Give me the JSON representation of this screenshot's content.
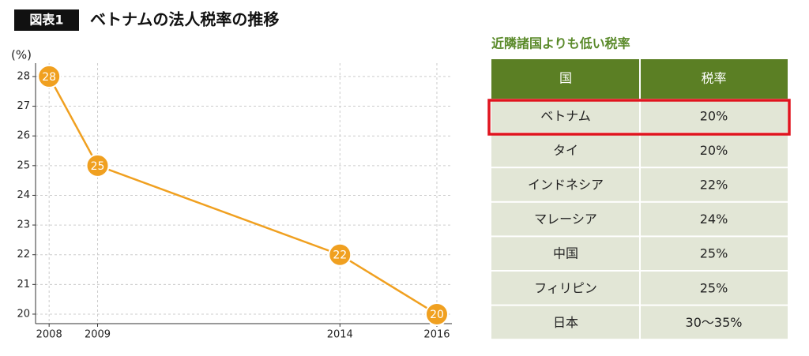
{
  "header": {
    "badge": "図表1",
    "title": "ベトナムの法人税率の推移"
  },
  "chart_data": {
    "type": "line",
    "y_label": "(%)",
    "x": [
      2008,
      2009,
      2014,
      2016
    ],
    "values": [
      28,
      25,
      22,
      20
    ],
    "color": "#f0a020",
    "xlim": [
      2007.72,
      2016.31
    ],
    "xticks": [
      2008,
      2009,
      2014,
      2016
    ],
    "ylim": [
      19.68,
      28.45
    ],
    "yticks": [
      20,
      21,
      22,
      23,
      24,
      25,
      26,
      27,
      28
    ],
    "grid": true
  },
  "table": {
    "title": "近隣諸国よりも低い税率",
    "header": [
      "国",
      "税率"
    ],
    "rows": [
      [
        "ベトナム",
        "20%"
      ],
      [
        "タイ",
        "20%"
      ],
      [
        "インドネシア",
        "22%"
      ],
      [
        "マレーシア",
        "24%"
      ],
      [
        "中国",
        "25%"
      ],
      [
        "フィリピン",
        "25%"
      ],
      [
        "日本",
        "30〜35%"
      ]
    ]
  }
}
